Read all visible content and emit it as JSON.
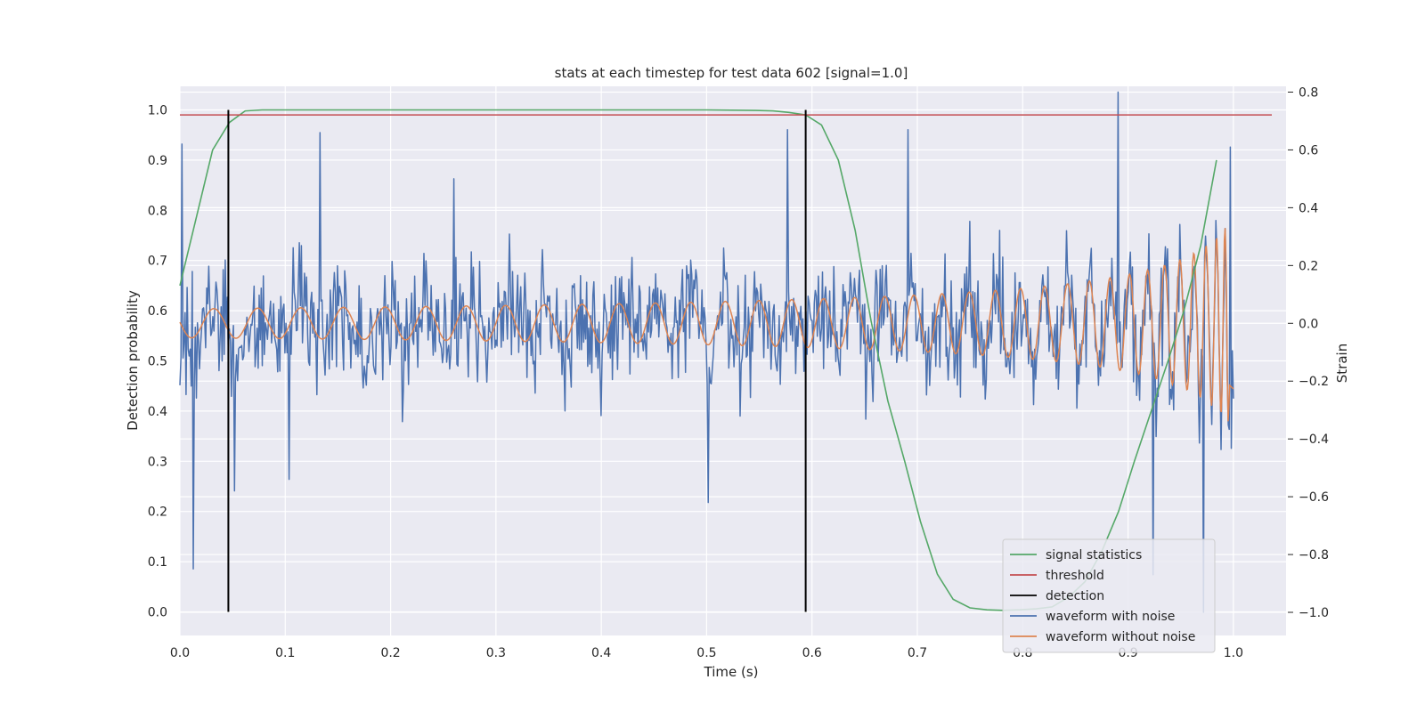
{
  "chart_data": {
    "type": "line",
    "title": "stats at each timestep for test data 602 [signal=1.0]",
    "xlabel": "Time (s)",
    "ylabel_left": "Detection probability",
    "ylabel_right": "Strain",
    "xlim": [
      0.0,
      1.05
    ],
    "ylim_left": [
      -0.047,
      1.047
    ],
    "ylim_right": [
      -1.08,
      0.82
    ],
    "x_ticks": [
      "0.0",
      "0.1",
      "0.2",
      "0.3",
      "0.4",
      "0.5",
      "0.6",
      "0.7",
      "0.8",
      "0.9",
      "1.0"
    ],
    "y_ticks_left": [
      "0.0",
      "0.1",
      "0.2",
      "0.3",
      "0.4",
      "0.5",
      "0.6",
      "0.7",
      "0.8",
      "0.9",
      "1.0"
    ],
    "y_ticks_right": [
      "−1.0",
      "−0.8",
      "−0.6",
      "−0.4",
      "−0.2",
      "0.0",
      "0.2",
      "0.4",
      "0.6",
      "0.8"
    ],
    "grid": true,
    "legend_position": "lower right",
    "threshold": 0.99,
    "detections": [
      0.046,
      0.594
    ],
    "series": [
      {
        "name": "signal statistics",
        "axis": "left",
        "color": "#55a868",
        "x": [
          0.0,
          0.031,
          0.047,
          0.062,
          0.078,
          0.094,
          0.109,
          0.125,
          0.2,
          0.3,
          0.4,
          0.5,
          0.547,
          0.563,
          0.578,
          0.594,
          0.609,
          0.625,
          0.641,
          0.656,
          0.672,
          0.688,
          0.703,
          0.719,
          0.734,
          0.75,
          0.766,
          0.781,
          0.797,
          0.813,
          0.828,
          0.844,
          0.859,
          0.875,
          0.891,
          0.906,
          0.922,
          0.938,
          0.953,
          0.969,
          0.984
        ],
        "y": [
          0.65,
          0.92,
          0.975,
          0.998,
          1.0,
          1.0,
          1.0,
          1.0,
          1.0,
          1.0,
          1.0,
          1.0,
          0.999,
          0.998,
          0.995,
          0.99,
          0.97,
          0.9,
          0.76,
          0.58,
          0.42,
          0.3,
          0.18,
          0.075,
          0.025,
          0.008,
          0.004,
          0.003,
          0.004,
          0.006,
          0.01,
          0.03,
          0.06,
          0.12,
          0.2,
          0.3,
          0.4,
          0.5,
          0.6,
          0.73,
          0.9
        ]
      },
      {
        "name": "threshold",
        "axis": "left",
        "color": "#c44e52"
      },
      {
        "name": "detection",
        "axis": "left",
        "color": "#000000"
      },
      {
        "name": "waveform with noise",
        "axis": "right",
        "color": "#4c72b0",
        "noise_std": 0.28,
        "samples": 1024,
        "peaks": [
          {
            "x": 0.002,
            "y": 0.62
          },
          {
            "x": 0.013,
            "y": -0.85
          },
          {
            "x": 0.052,
            "y": -0.58
          },
          {
            "x": 0.104,
            "y": -0.54
          },
          {
            "x": 0.133,
            "y": 0.66
          },
          {
            "x": 0.26,
            "y": 0.5
          },
          {
            "x": 0.501,
            "y": -0.62
          },
          {
            "x": 0.577,
            "y": 0.67
          },
          {
            "x": 0.691,
            "y": 0.67
          },
          {
            "x": 0.891,
            "y": 0.8
          },
          {
            "x": 0.924,
            "y": -0.87
          },
          {
            "x": 0.972,
            "y": -1.0
          },
          {
            "x": 0.997,
            "y": 0.61
          }
        ]
      },
      {
        "name": "waveform without noise",
        "axis": "right",
        "color": "#dd8452",
        "model": "chirp",
        "t_coalescence": 1.0
      }
    ]
  }
}
